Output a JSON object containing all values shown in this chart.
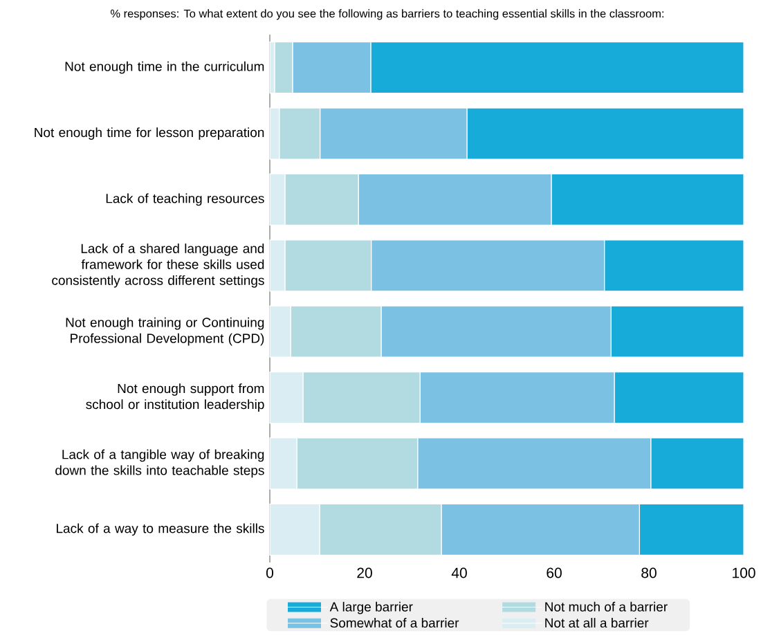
{
  "chart_data": {
    "type": "bar",
    "orientation": "horizontal",
    "stacked": true,
    "title": "% responses: To what extent do you see the following as barriers to teaching essential skills in the classroom:",
    "categories": [
      "Not enough time in the curriculum",
      "Not enough time for lesson preparation",
      "Lack of teaching resources",
      "Lack of a shared language and framework for these skills used consistently across different settings",
      "Not enough training or Continuing Professional Development (CPD)",
      "Not enough support from school or institution leadership",
      "Lack of a tangible way of breaking down the skills into teachable steps",
      "Lack of a way to measure the skills"
    ],
    "series": [
      {
        "name": "Not at all a barrier",
        "color": "#d9edf2",
        "values": [
          1.0,
          2.0,
          3.2,
          3.2,
          4.4,
          7.0,
          5.7,
          10.5
        ]
      },
      {
        "name": "Not much of a barrier",
        "color": "#b1dbe1",
        "values": [
          3.8,
          8.6,
          15.5,
          18.2,
          19.1,
          24.7,
          25.5,
          25.7
        ]
      },
      {
        "name": "Somewhat of a barrier",
        "color": "#7bc1e3",
        "values": [
          16.5,
          31.0,
          40.7,
          49.2,
          48.5,
          41.0,
          49.2,
          41.8
        ]
      },
      {
        "name": "A large barrier",
        "color": "#17abd9",
        "values": [
          78.7,
          58.4,
          40.6,
          29.4,
          28.0,
          27.3,
          19.6,
          22.0
        ]
      }
    ],
    "xlim": [
      0,
      100
    ],
    "xticks": [
      0,
      20,
      40,
      60,
      80,
      100
    ],
    "legend": "bottom"
  }
}
